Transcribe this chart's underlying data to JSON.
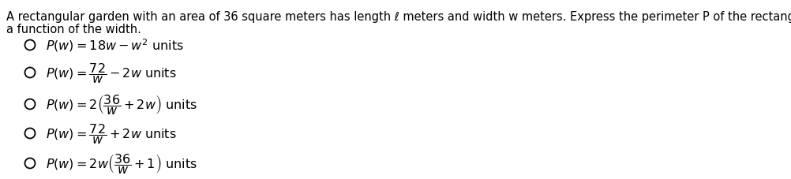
{
  "background_color": "#ffffff",
  "text_color": "#000000",
  "prompt_line1": "A rectangular garden with an area of 36 square meters has length ℓ meters and width w meters. Express the perimeter P of the rectangular garden as",
  "prompt_line2": "a function of the width.",
  "options": [
    "$P(w) = 18w - w^2$ units",
    "$P(w) = \\dfrac{72}{w} - 2w$ units",
    "$P(w) = 2\\left(\\dfrac{36}{w} + 2w\\right)$ units",
    "$P(w) = \\dfrac{72}{w} + 2w$ units",
    "$P(w) = 2w\\left(\\dfrac{36}{w} + 1\\right)$ units"
  ],
  "font_size_prompt": 10.5,
  "font_size_options": 11.5,
  "fig_width": 10.02,
  "fig_height": 2.28,
  "dpi": 100
}
